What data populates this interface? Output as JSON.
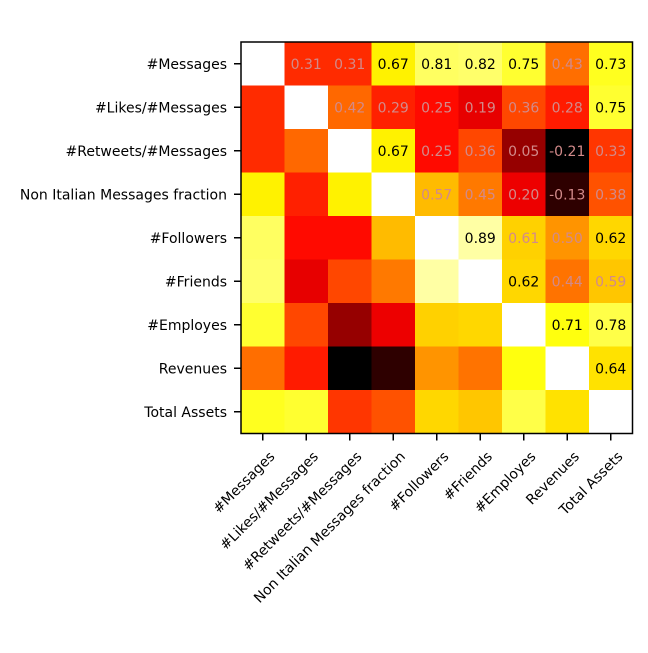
{
  "chart_data": {
    "type": "heatmap",
    "title": "",
    "xlabel": "",
    "ylabel": "",
    "categories": [
      "#Messages",
      "#Likes/#Messages",
      "#Retweets/#Messages",
      "Non Italian Messages fraction",
      "#Followers",
      "#Friends",
      "#Employes",
      "Revenues",
      "Total Assets"
    ],
    "x_tick_labels": [
      "#Messages",
      "#Likes/#Messages",
      "#Retweets/#Messages",
      "Non Italian Messages fraction",
      "#Followers",
      "#Friends",
      "#Employes",
      "Revenues",
      "Total Assets"
    ],
    "y_tick_labels": [
      "#Messages",
      "#Likes/#Messages",
      "#Retweets/#Messages",
      "Non Italian Messages fraction",
      "#Followers",
      "#Friends",
      "#Employes",
      "Revenues",
      "Total Assets"
    ],
    "colormap": "hot",
    "value_range": [
      -0.21,
      1.0
    ],
    "diagonal": "blank (white)",
    "upper_triangle_labels": [
      [
        null,
        "0.31",
        "0.31",
        "0.67",
        "0.81",
        "0.82",
        "0.75",
        "0.43",
        "0.73"
      ],
      [
        null,
        null,
        "0.42",
        "0.29",
        "0.25",
        "0.19",
        "0.36",
        "0.28",
        "0.75"
      ],
      [
        null,
        null,
        null,
        "0.67",
        "0.25",
        "0.36",
        "0.05",
        "-0.21",
        "0.33"
      ],
      [
        null,
        null,
        null,
        null,
        "0.57",
        "0.45",
        "0.20",
        "-0.13",
        "0.38"
      ],
      [
        null,
        null,
        null,
        null,
        null,
        "0.89",
        "0.61",
        "0.50",
        "0.62"
      ],
      [
        null,
        null,
        null,
        null,
        null,
        null,
        "0.62",
        "0.44",
        "0.59"
      ],
      [
        null,
        null,
        null,
        null,
        null,
        null,
        null,
        "0.71",
        "0.78"
      ],
      [
        null,
        null,
        null,
        null,
        null,
        null,
        null,
        null,
        "0.64"
      ],
      [
        null,
        null,
        null,
        null,
        null,
        null,
        null,
        null,
        null
      ]
    ],
    "values": [
      [
        null,
        0.31,
        0.31,
        0.67,
        0.81,
        0.82,
        0.75,
        0.43,
        0.73
      ],
      [
        0.31,
        null,
        0.42,
        0.29,
        0.25,
        0.19,
        0.36,
        0.28,
        0.75
      ],
      [
        0.31,
        0.42,
        null,
        0.67,
        0.25,
        0.36,
        0.05,
        -0.21,
        0.33
      ],
      [
        0.67,
        0.29,
        0.67,
        null,
        0.57,
        0.45,
        0.2,
        -0.13,
        0.38
      ],
      [
        0.81,
        0.25,
        0.25,
        0.57,
        null,
        0.89,
        0.61,
        0.5,
        0.62
      ],
      [
        0.82,
        0.19,
        0.36,
        0.45,
        0.89,
        null,
        0.62,
        0.44,
        0.59
      ],
      [
        0.75,
        0.36,
        0.05,
        0.2,
        0.61,
        0.62,
        null,
        0.71,
        0.78
      ],
      [
        0.43,
        0.28,
        -0.21,
        -0.13,
        0.5,
        0.44,
        0.71,
        null,
        0.64
      ],
      [
        0.73,
        0.75,
        0.33,
        0.38,
        0.62,
        0.59,
        0.78,
        0.64,
        null
      ]
    ],
    "label_colors": {
      "light": "#000000",
      "dark": "#d28a8a"
    },
    "dark_label_threshold": 0.62,
    "grid": false
  }
}
